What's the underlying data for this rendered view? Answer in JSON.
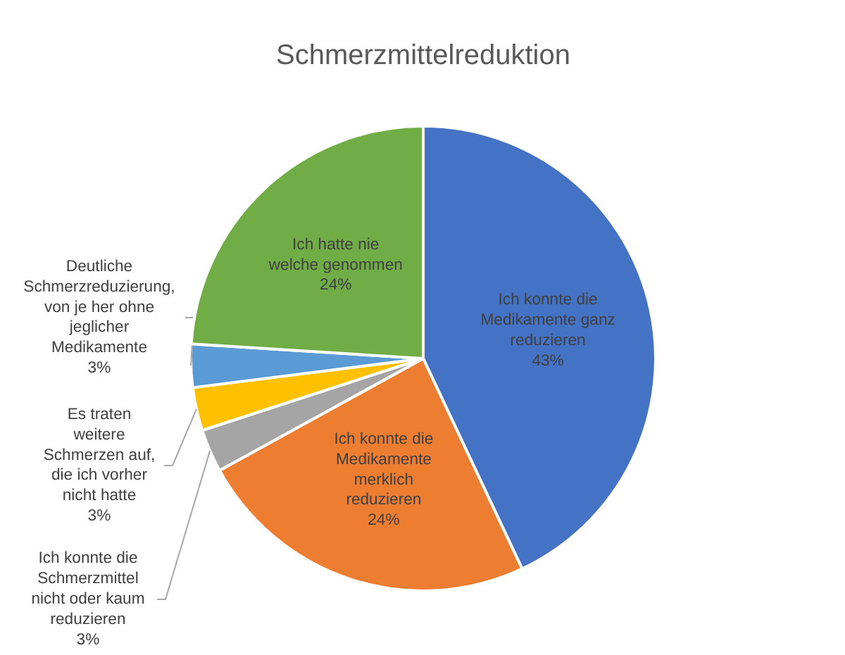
{
  "chart_data": {
    "type": "pie",
    "title": "Schmerzmittelreduktion",
    "categories": [
      "Ich konnte die Medikamente ganz reduzieren",
      "Ich konnte die Medikamente merklich reduzieren",
      "Ich konnte die Schmerzmittel nicht oder kaum reduzieren",
      "Es traten weitere Schmerzen auf, die ich vorher nicht hatte",
      "Deutliche Schmerzreduzierung, von je her ohne jeglicher Medikamente",
      "Ich hatte nie welche genommen"
    ],
    "values": [
      43,
      24,
      3,
      3,
      3,
      24
    ],
    "value_labels": [
      "43%",
      "24%",
      "3%",
      "3%",
      "3%",
      "24%"
    ],
    "colors": [
      "#4472c4",
      "#ed7d31",
      "#a5a5a5",
      "#ffc000",
      "#5b9bd5",
      "#70ad47"
    ]
  }
}
